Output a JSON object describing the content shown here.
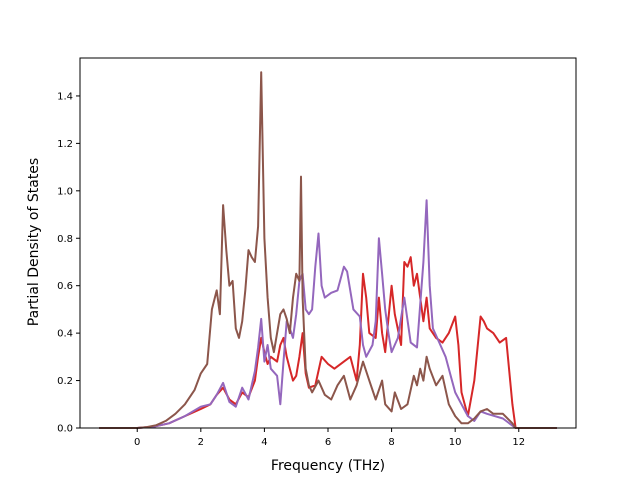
{
  "chart_data": {
    "type": "line",
    "title": "",
    "xlabel": "Frequency (THz)",
    "ylabel": "Partial Density of States",
    "xlim": [
      -1.8,
      13.8
    ],
    "ylim": [
      0.0,
      1.56
    ],
    "xticks": [
      0,
      2,
      4,
      6,
      8,
      10,
      12
    ],
    "xtick_labels": [
      "0",
      "2",
      "4",
      "6",
      "8",
      "10",
      "12"
    ],
    "yticks": [
      0.0,
      0.2,
      0.4,
      0.6,
      0.8,
      1.0,
      1.2,
      1.4
    ],
    "ytick_labels": [
      "0.0",
      "0.2",
      "0.4",
      "0.6",
      "0.8",
      "1.0",
      "1.2",
      "1.4"
    ],
    "grid": false,
    "legend": "none",
    "series": [
      {
        "color": "#d62728",
        "points": [
          [
            -1.2,
            0
          ],
          [
            0,
            0
          ],
          [
            0.5,
            0.005
          ],
          [
            1,
            0.02
          ],
          [
            1.5,
            0.05
          ],
          [
            2,
            0.08
          ],
          [
            2.3,
            0.1
          ],
          [
            2.5,
            0.14
          ],
          [
            2.7,
            0.17
          ],
          [
            2.9,
            0.12
          ],
          [
            3.1,
            0.1
          ],
          [
            3.3,
            0.15
          ],
          [
            3.5,
            0.13
          ],
          [
            3.7,
            0.2
          ],
          [
            3.8,
            0.3
          ],
          [
            3.9,
            0.38
          ],
          [
            4.0,
            0.32
          ],
          [
            4.1,
            0.27
          ],
          [
            4.2,
            0.3
          ],
          [
            4.4,
            0.28
          ],
          [
            4.5,
            0.35
          ],
          [
            4.6,
            0.38
          ],
          [
            4.7,
            0.3
          ],
          [
            4.8,
            0.25
          ],
          [
            4.9,
            0.2
          ],
          [
            5.0,
            0.22
          ],
          [
            5.1,
            0.3
          ],
          [
            5.2,
            0.4
          ],
          [
            5.3,
            0.23
          ],
          [
            5.4,
            0.17
          ],
          [
            5.6,
            0.18
          ],
          [
            5.8,
            0.3
          ],
          [
            6.0,
            0.27
          ],
          [
            6.2,
            0.25
          ],
          [
            6.5,
            0.28
          ],
          [
            6.7,
            0.3
          ],
          [
            6.9,
            0.2
          ],
          [
            7.0,
            0.35
          ],
          [
            7.1,
            0.65
          ],
          [
            7.2,
            0.55
          ],
          [
            7.3,
            0.4
          ],
          [
            7.5,
            0.38
          ],
          [
            7.6,
            0.55
          ],
          [
            7.7,
            0.4
          ],
          [
            7.8,
            0.32
          ],
          [
            8.0,
            0.6
          ],
          [
            8.1,
            0.48
          ],
          [
            8.3,
            0.35
          ],
          [
            8.4,
            0.7
          ],
          [
            8.5,
            0.68
          ],
          [
            8.6,
            0.72
          ],
          [
            8.7,
            0.6
          ],
          [
            8.8,
            0.65
          ],
          [
            8.9,
            0.55
          ],
          [
            9.0,
            0.45
          ],
          [
            9.1,
            0.55
          ],
          [
            9.2,
            0.42
          ],
          [
            9.4,
            0.38
          ],
          [
            9.6,
            0.36
          ],
          [
            9.8,
            0.4
          ],
          [
            10.0,
            0.47
          ],
          [
            10.1,
            0.35
          ],
          [
            10.2,
            0.15
          ],
          [
            10.4,
            0.05
          ],
          [
            10.6,
            0.2
          ],
          [
            10.8,
            0.47
          ],
          [
            10.9,
            0.45
          ],
          [
            11.0,
            0.42
          ],
          [
            11.2,
            0.4
          ],
          [
            11.4,
            0.36
          ],
          [
            11.6,
            0.38
          ],
          [
            11.8,
            0.1
          ],
          [
            11.9,
            0
          ],
          [
            13.2,
            0
          ]
        ]
      },
      {
        "color": "#9467bd",
        "points": [
          [
            -1.2,
            0
          ],
          [
            0,
            0
          ],
          [
            0.5,
            0.005
          ],
          [
            1,
            0.02
          ],
          [
            1.5,
            0.05
          ],
          [
            2,
            0.09
          ],
          [
            2.3,
            0.1
          ],
          [
            2.5,
            0.14
          ],
          [
            2.7,
            0.19
          ],
          [
            2.9,
            0.11
          ],
          [
            3.1,
            0.09
          ],
          [
            3.3,
            0.17
          ],
          [
            3.5,
            0.12
          ],
          [
            3.7,
            0.24
          ],
          [
            3.8,
            0.34
          ],
          [
            3.9,
            0.46
          ],
          [
            4.0,
            0.28
          ],
          [
            4.1,
            0.35
          ],
          [
            4.2,
            0.25
          ],
          [
            4.4,
            0.22
          ],
          [
            4.5,
            0.1
          ],
          [
            4.6,
            0.28
          ],
          [
            4.7,
            0.45
          ],
          [
            4.8,
            0.42
          ],
          [
            4.9,
            0.38
          ],
          [
            5.0,
            0.48
          ],
          [
            5.1,
            0.62
          ],
          [
            5.2,
            0.65
          ],
          [
            5.3,
            0.5
          ],
          [
            5.4,
            0.48
          ],
          [
            5.5,
            0.5
          ],
          [
            5.6,
            0.68
          ],
          [
            5.7,
            0.82
          ],
          [
            5.8,
            0.6
          ],
          [
            5.9,
            0.55
          ],
          [
            6.1,
            0.57
          ],
          [
            6.3,
            0.58
          ],
          [
            6.5,
            0.68
          ],
          [
            6.6,
            0.66
          ],
          [
            6.8,
            0.5
          ],
          [
            7.0,
            0.47
          ],
          [
            7.1,
            0.35
          ],
          [
            7.2,
            0.3
          ],
          [
            7.4,
            0.35
          ],
          [
            7.5,
            0.45
          ],
          [
            7.6,
            0.8
          ],
          [
            7.7,
            0.65
          ],
          [
            7.8,
            0.5
          ],
          [
            7.9,
            0.4
          ],
          [
            8.0,
            0.32
          ],
          [
            8.2,
            0.38
          ],
          [
            8.4,
            0.55
          ],
          [
            8.6,
            0.36
          ],
          [
            8.8,
            0.34
          ],
          [
            9.0,
            0.7
          ],
          [
            9.1,
            0.96
          ],
          [
            9.2,
            0.6
          ],
          [
            9.3,
            0.42
          ],
          [
            9.5,
            0.36
          ],
          [
            9.7,
            0.3
          ],
          [
            9.9,
            0.2
          ],
          [
            10.0,
            0.15
          ],
          [
            10.2,
            0.1
          ],
          [
            10.4,
            0.05
          ],
          [
            10.6,
            0.03
          ],
          [
            10.8,
            0.07
          ],
          [
            11.0,
            0.06
          ],
          [
            11.5,
            0.04
          ],
          [
            11.9,
            0
          ],
          [
            13.2,
            0
          ]
        ]
      },
      {
        "color": "#8c564b",
        "points": [
          [
            -1.2,
            0
          ],
          [
            0,
            0
          ],
          [
            0.3,
            0.004
          ],
          [
            0.6,
            0.012
          ],
          [
            0.9,
            0.03
          ],
          [
            1.2,
            0.06
          ],
          [
            1.5,
            0.1
          ],
          [
            1.8,
            0.16
          ],
          [
            2.0,
            0.23
          ],
          [
            2.2,
            0.27
          ],
          [
            2.35,
            0.5
          ],
          [
            2.5,
            0.58
          ],
          [
            2.6,
            0.48
          ],
          [
            2.7,
            0.94
          ],
          [
            2.8,
            0.75
          ],
          [
            2.9,
            0.6
          ],
          [
            3.0,
            0.62
          ],
          [
            3.1,
            0.42
          ],
          [
            3.2,
            0.38
          ],
          [
            3.3,
            0.45
          ],
          [
            3.4,
            0.58
          ],
          [
            3.5,
            0.75
          ],
          [
            3.6,
            0.72
          ],
          [
            3.7,
            0.7
          ],
          [
            3.8,
            0.85
          ],
          [
            3.9,
            1.5
          ],
          [
            4.0,
            0.8
          ],
          [
            4.1,
            0.55
          ],
          [
            4.2,
            0.38
          ],
          [
            4.3,
            0.32
          ],
          [
            4.4,
            0.4
          ],
          [
            4.5,
            0.48
          ],
          [
            4.6,
            0.5
          ],
          [
            4.7,
            0.46
          ],
          [
            4.8,
            0.4
          ],
          [
            4.9,
            0.55
          ],
          [
            5.0,
            0.65
          ],
          [
            5.1,
            0.62
          ],
          [
            5.15,
            1.06
          ],
          [
            5.2,
            0.55
          ],
          [
            5.3,
            0.25
          ],
          [
            5.4,
            0.18
          ],
          [
            5.5,
            0.15
          ],
          [
            5.7,
            0.2
          ],
          [
            5.9,
            0.14
          ],
          [
            6.1,
            0.12
          ],
          [
            6.3,
            0.18
          ],
          [
            6.5,
            0.22
          ],
          [
            6.7,
            0.12
          ],
          [
            6.9,
            0.18
          ],
          [
            7.1,
            0.28
          ],
          [
            7.3,
            0.2
          ],
          [
            7.5,
            0.12
          ],
          [
            7.7,
            0.2
          ],
          [
            7.8,
            0.1
          ],
          [
            8.0,
            0.07
          ],
          [
            8.1,
            0.15
          ],
          [
            8.3,
            0.08
          ],
          [
            8.5,
            0.1
          ],
          [
            8.7,
            0.22
          ],
          [
            8.8,
            0.18
          ],
          [
            8.9,
            0.25
          ],
          [
            9.0,
            0.2
          ],
          [
            9.1,
            0.3
          ],
          [
            9.2,
            0.25
          ],
          [
            9.4,
            0.18
          ],
          [
            9.6,
            0.22
          ],
          [
            9.8,
            0.1
          ],
          [
            10.0,
            0.05
          ],
          [
            10.2,
            0.02
          ],
          [
            10.4,
            0.02
          ],
          [
            10.6,
            0.04
          ],
          [
            10.8,
            0.07
          ],
          [
            11.0,
            0.08
          ],
          [
            11.2,
            0.06
          ],
          [
            11.5,
            0.06
          ],
          [
            11.8,
            0.02
          ],
          [
            11.9,
            0
          ],
          [
            13.2,
            0
          ]
        ]
      }
    ]
  }
}
